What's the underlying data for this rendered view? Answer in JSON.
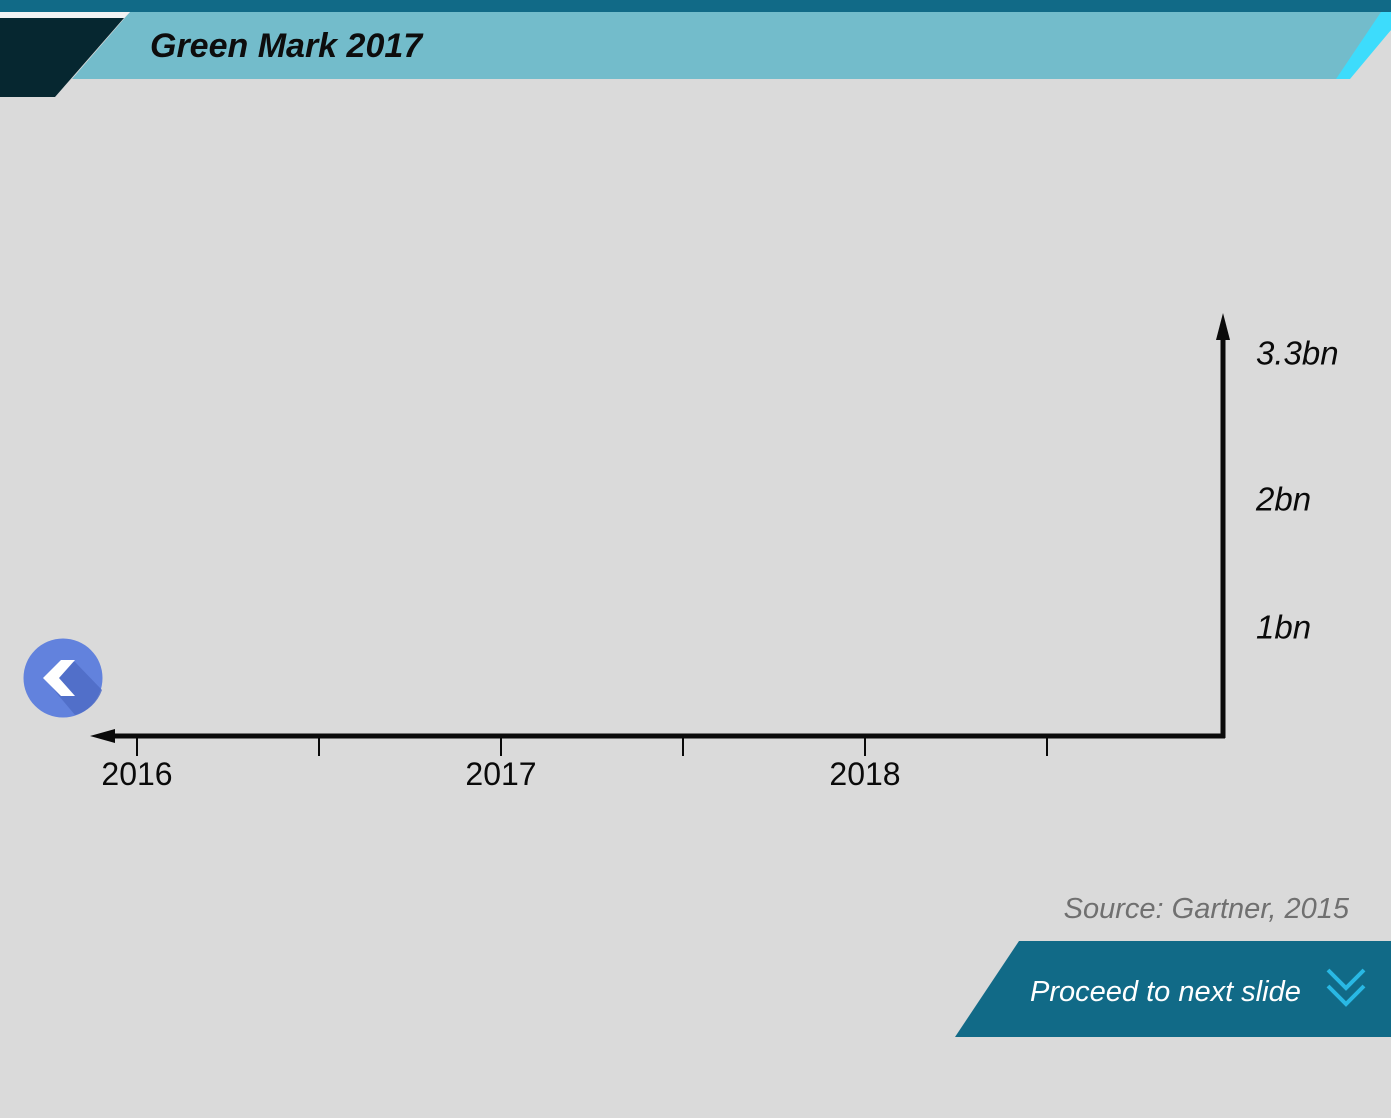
{
  "header": {
    "title": "Green Mark 2017"
  },
  "source": "Source: Gartner, 2015",
  "next_button": {
    "label": "Proceed to next slide",
    "icon": "double-chevron-down-icon"
  },
  "back_button": {
    "icon": "chevron-left-icon"
  },
  "colors": {
    "background": "#dadada",
    "header_band": "#73bccb",
    "header_dark": "#062730",
    "top_stripe": "#116a87",
    "header_accent": "#3ddcfc",
    "next_button_bg": "#116a87",
    "next_icon": "#29b8e4",
    "back_button": "#6282dd",
    "back_button_shadow": "#4f6cc6",
    "axis": "#0a0a0a"
  },
  "chart_data": {
    "type": "line",
    "title": "",
    "xlabel": "",
    "ylabel": "",
    "x_tick_labels": [
      "2016",
      "2017",
      "2018"
    ],
    "x_range": [
      2016,
      2019
    ],
    "x_minor_ticks": [
      2016.5,
      2017.5,
      2018.5
    ],
    "y_tick_labels": [
      {
        "label": "1bn",
        "value": 1.0
      },
      {
        "label": "2bn",
        "value": 2.0
      },
      {
        "label": "3.3bn",
        "value": 3.3
      }
    ],
    "y_range": [
      0,
      3.3
    ],
    "y_axis_side": "right",
    "series": [],
    "grid": false
  }
}
